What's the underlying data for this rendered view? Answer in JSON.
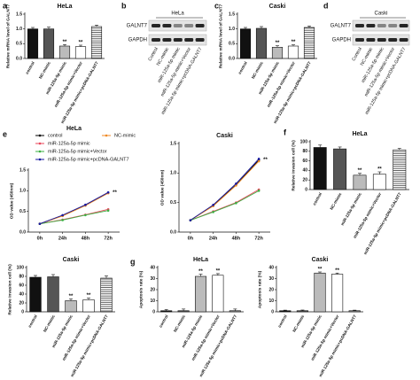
{
  "chart_data": [
    {
      "type": "bar",
      "panel": "a",
      "title": "HeLa",
      "ylabel": "Relative mRNA level of GALNT7",
      "categories": [
        "control",
        "NC-mimic",
        "miR-125a-5p mimic",
        "miR-125a-5p mimic+Vector",
        "miR-125a-5p mimic+pcDNA-GALNT7"
      ],
      "values": [
        1.0,
        1.0,
        0.42,
        0.4,
        1.08
      ],
      "errors": [
        0.05,
        0.06,
        0.05,
        0.05,
        0.05
      ],
      "markers": [
        null,
        null,
        "**",
        "**",
        null
      ],
      "colors": [
        "#111111",
        "#555555",
        "#bbbbbb",
        "#ffffff",
        "#ffffff"
      ],
      "patterns": [
        "solid",
        "solid",
        "solid",
        "solid",
        "stripes"
      ],
      "ylim": [
        0,
        1.5
      ],
      "yticks": [
        {
          "value": 0,
          "label": "0.0"
        },
        {
          "value": 0.5,
          "label": "0.5"
        },
        {
          "value": 1,
          "label": "1.0"
        },
        {
          "value": 1.5,
          "label": "1.5"
        }
      ]
    },
    {
      "type": "bar",
      "panel": "c",
      "title": "Caski",
      "ylabel": "Relative mRNA level of GALNT7",
      "categories": [
        "control",
        "NC-mimic",
        "miR-125a-5p mimic",
        "miR-125a-5p mimic+Vector",
        "miR-125a-5p mimic+pcDNA-GALNT7"
      ],
      "values": [
        1.0,
        1.02,
        0.38,
        0.42,
        1.05
      ],
      "errors": [
        0.05,
        0.06,
        0.05,
        0.04,
        0.05
      ],
      "markers": [
        null,
        null,
        "**",
        "**",
        null
      ],
      "colors": [
        "#111111",
        "#555555",
        "#bbbbbb",
        "#ffffff",
        "#ffffff"
      ],
      "patterns": [
        "solid",
        "solid",
        "solid",
        "solid",
        "stripes"
      ],
      "ylim": [
        0,
        1.5
      ],
      "yticks": [
        {
          "value": 0,
          "label": "0.0"
        },
        {
          "value": 0.5,
          "label": "0.5"
        },
        {
          "value": 1,
          "label": "1.0"
        },
        {
          "value": 1.5,
          "label": "1.5"
        }
      ]
    },
    {
      "type": "line",
      "panel": "e",
      "title": "HeLa",
      "ylabel": "OD value (450nm)",
      "legend": true,
      "annotation": "**",
      "categories": [
        "0h",
        "24h",
        "48h",
        "72h"
      ],
      "series": [
        {
          "name": "control",
          "color": "#000000",
          "values": [
            0.2,
            0.4,
            0.65,
            0.95
          ]
        },
        {
          "name": "NC-mimic",
          "color": "#f08a24",
          "values": [
            0.2,
            0.39,
            0.64,
            0.94
          ]
        },
        {
          "name": "miR-125a-5p mimic",
          "color": "#e8455a",
          "values": [
            0.2,
            0.3,
            0.42,
            0.55
          ]
        },
        {
          "name": "miR-125a-5p mimic+Vector",
          "color": "#3cb043",
          "values": [
            0.2,
            0.29,
            0.41,
            0.52
          ]
        },
        {
          "name": "miR-125a-5p mimic+pcDNA-GALNT7",
          "color": "#1a1aa0",
          "values": [
            0.2,
            0.41,
            0.66,
            0.96
          ]
        }
      ],
      "ylim": [
        0,
        1.5
      ],
      "yticks": [
        {
          "value": 0,
          "label": "0.0"
        },
        {
          "value": 0.5,
          "label": "0.5"
        },
        {
          "value": 1,
          "label": "1.0"
        },
        {
          "value": 1.5,
          "label": "1.5"
        }
      ]
    },
    {
      "type": "line",
      "title": "Caski",
      "ylabel": "OD value (450nm)",
      "legend": false,
      "annotation": "**",
      "categories": [
        "0h",
        "24h",
        "48h",
        "72h"
      ],
      "series": [
        {
          "name": "control",
          "color": "#000000",
          "values": [
            0.2,
            0.45,
            0.8,
            1.22
          ]
        },
        {
          "name": "NC-mimic",
          "color": "#f08a24",
          "values": [
            0.2,
            0.44,
            0.79,
            1.2
          ]
        },
        {
          "name": "miR-125a-5p mimic",
          "color": "#e8455a",
          "values": [
            0.2,
            0.35,
            0.5,
            0.72
          ]
        },
        {
          "name": "miR-125a-5p mimic+Vector",
          "color": "#3cb043",
          "values": [
            0.2,
            0.34,
            0.49,
            0.7
          ]
        },
        {
          "name": "miR-125a-5p mimic+pcDNA-GALNT7",
          "color": "#1a1aa0",
          "values": [
            0.2,
            0.46,
            0.82,
            1.24
          ]
        }
      ],
      "ylim": [
        0,
        1.5
      ],
      "yticks": [
        {
          "value": 0,
          "label": "0.0"
        },
        {
          "value": 0.5,
          "label": "0.5"
        },
        {
          "value": 1,
          "label": "1.0"
        },
        {
          "value": 1.5,
          "label": "1.5"
        }
      ]
    },
    {
      "type": "bar",
      "panel": "f",
      "title": "HeLa",
      "ylabel": "Relative invasion cell (%)",
      "categories": [
        "control",
        "NC-mimic",
        "miR-125a-5p mimic",
        "miR-125a-5p mimic+Vector",
        "miR-125a-5p mimic+pcDNA-GALNT7"
      ],
      "values": [
        88,
        85,
        30,
        32,
        83
      ],
      "errors": [
        5,
        4,
        4,
        5,
        3
      ],
      "markers": [
        null,
        null,
        "**",
        "**",
        null
      ],
      "colors": [
        "#111111",
        "#555555",
        "#bbbbbb",
        "#ffffff",
        "#ffffff"
      ],
      "patterns": [
        "solid",
        "solid",
        "solid",
        "solid",
        "stripes"
      ],
      "ylim": [
        0,
        100
      ],
      "yticks": [
        0,
        20,
        40,
        60,
        80,
        100
      ]
    },
    {
      "type": "bar",
      "title": "Caski",
      "ylabel": "Relative invasion cell (%)",
      "categories": [
        "control",
        "NC-mimic",
        "miR-125a-5p mimic",
        "miR-125a-5p mimic+Vector",
        "miR-125a-5p mimic+pcDNA-GALNT7"
      ],
      "values": [
        78,
        79,
        25,
        27,
        76
      ],
      "errors": [
        4,
        5,
        4,
        4,
        5
      ],
      "markers": [
        null,
        null,
        "**",
        "**",
        null
      ],
      "colors": [
        "#111111",
        "#555555",
        "#bbbbbb",
        "#ffffff",
        "#ffffff"
      ],
      "patterns": [
        "solid",
        "solid",
        "solid",
        "solid",
        "stripes"
      ],
      "ylim": [
        0,
        100
      ],
      "yticks": [
        0,
        20,
        40,
        60,
        80,
        100
      ]
    },
    {
      "type": "bar",
      "panel": "g",
      "title": "HeLa",
      "ylabel": "Apoptosis rate (%)",
      "categories": [
        "control",
        "NC-mimic",
        "miR-125a-5p mimic",
        "miR-125a-5p mimic+Vector",
        "miR-125a-5p mimic+pcDNA-GALNT7"
      ],
      "values": [
        1,
        1,
        32,
        33,
        1
      ],
      "errors": [
        1,
        1.5,
        2,
        1.5,
        1.5
      ],
      "markers": [
        null,
        null,
        "**",
        "**",
        null
      ],
      "colors": [
        "#111111",
        "#555555",
        "#bbbbbb",
        "#ffffff",
        "#ffffff"
      ],
      "patterns": [
        "solid",
        "solid",
        "solid",
        "solid",
        "stripes"
      ],
      "ylim": [
        0,
        40
      ],
      "yticks": [
        0,
        10,
        20,
        30,
        40
      ]
    },
    {
      "type": "bar",
      "title": "Caski",
      "ylabel": "Apoptosis rate (%)",
      "categories": [
        "control",
        "NC-mimic",
        "miR-125a-5p mimic",
        "miR-125a-5p mimic+Vector",
        "miR-125a-5p mimic+pcDNA-GALNT7"
      ],
      "values": [
        1,
        1,
        35,
        34,
        1
      ],
      "errors": [
        0.5,
        0.6,
        1,
        1,
        0.5
      ],
      "markers": [
        null,
        null,
        "**",
        "**",
        null
      ],
      "colors": [
        "#111111",
        "#555555",
        "#bbbbbb",
        "#ffffff",
        "#ffffff"
      ],
      "patterns": [
        "solid",
        "solid",
        "solid",
        "solid",
        "stripes"
      ],
      "ylim": [
        0,
        40
      ],
      "yticks": [
        0,
        10,
        20,
        30,
        40
      ]
    }
  ],
  "blots": [
    {
      "panel": "b",
      "header": "HeLa",
      "rows": [
        "GALNT7",
        "GAPDH"
      ],
      "lanes": [
        "Control",
        "NC-mimic",
        "miR-125a-5p mimic",
        "miR-125a-5p mimic+Vector",
        "miR-125a-5p mimic+pcDNA-GALNT7"
      ]
    },
    {
      "panel": "d",
      "header": "Caski",
      "rows": [
        "GALNT7",
        "GAPDH"
      ],
      "lanes": [
        "Control",
        "NC-mimic",
        "miR-125a-5p mimic",
        "miR-125a-5p mimic+Vector",
        "miR-125a-5p mimic+pcDNA-GALNT7"
      ]
    }
  ]
}
